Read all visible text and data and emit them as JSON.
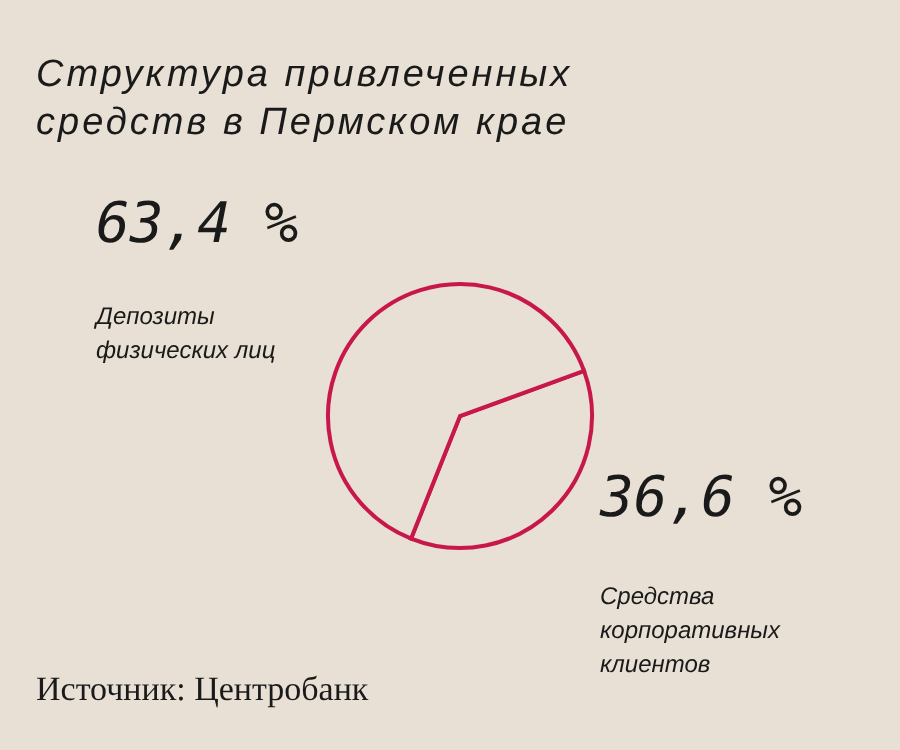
{
  "chart_data": {
    "type": "pie",
    "title": "Структура привлеченных средств в Пермском крае",
    "categories": [
      "Средства корпоративных клиентов",
      "Депозиты физических лиц"
    ],
    "values": [
      36.6,
      63.4
    ],
    "value_labels": [
      "36,6 %",
      "63,4 %"
    ],
    "colors": [
      "#e8e0d5",
      "#e8e0d5"
    ],
    "legend": false,
    "annotations": [
      "Источник: Центробанк"
    ]
  }
}
